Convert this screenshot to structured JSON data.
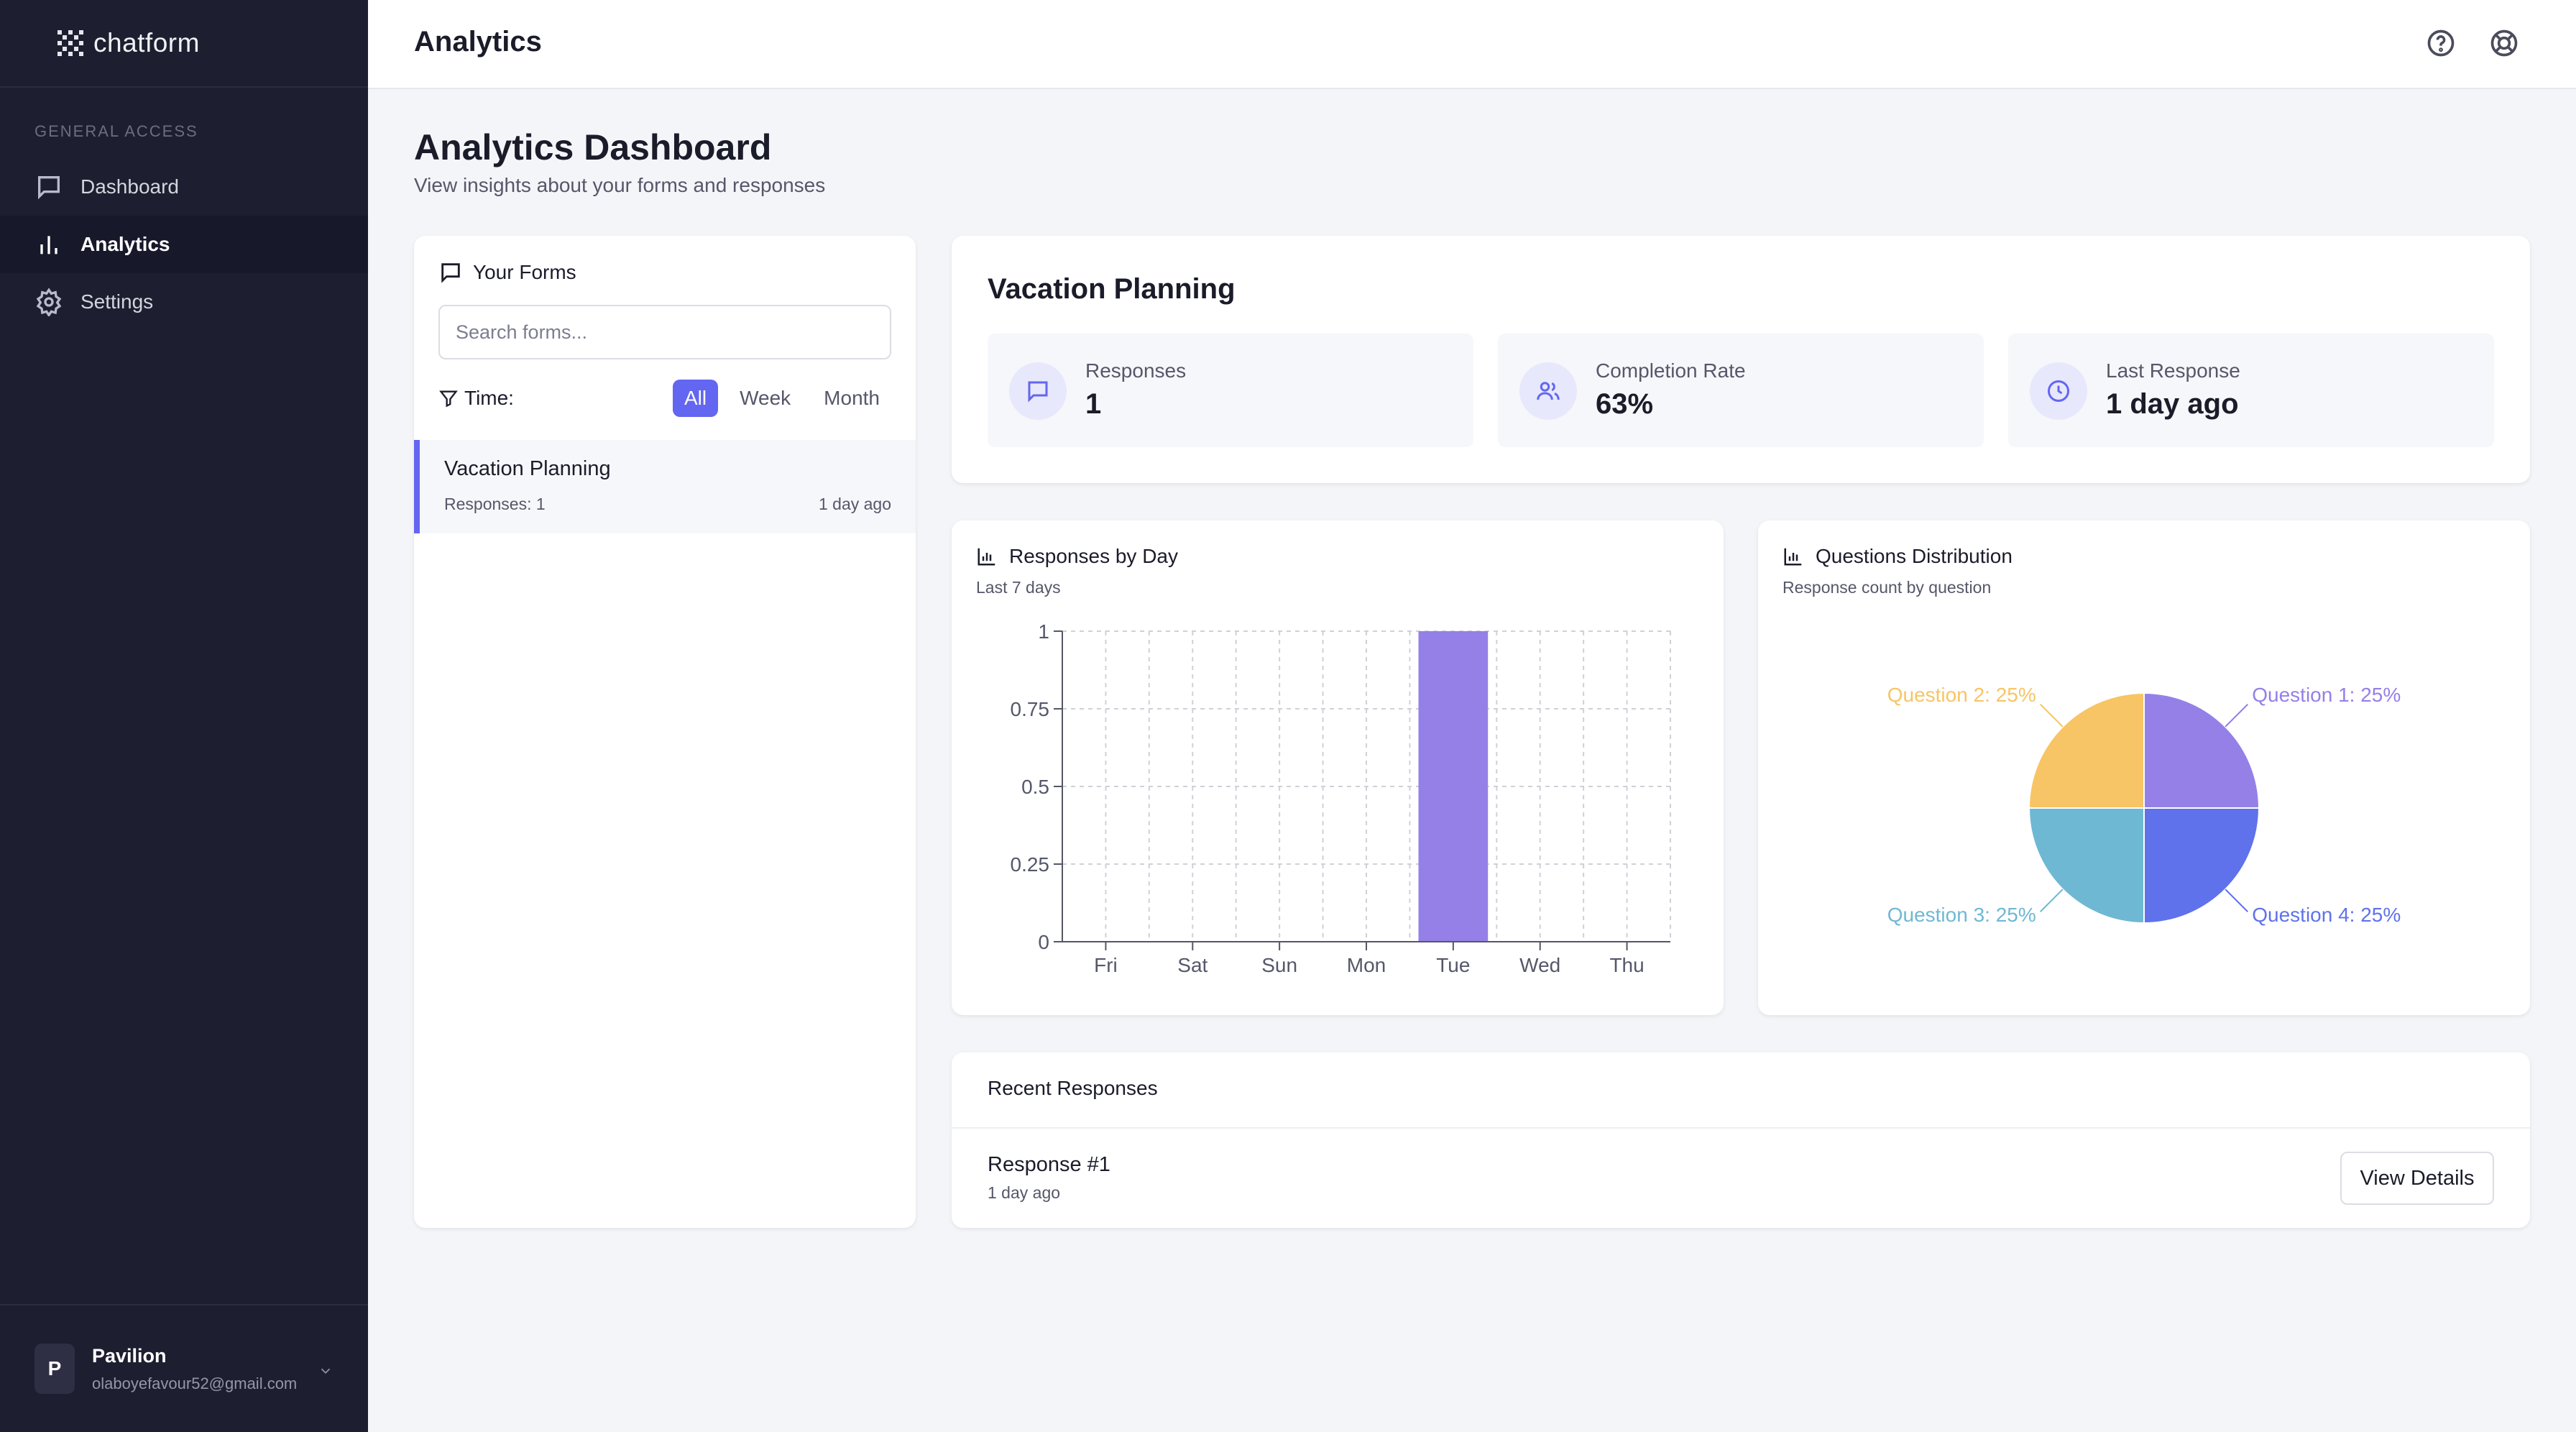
{
  "app": {
    "brand": "chatform"
  },
  "sidebar": {
    "section_label": "GENERAL ACCESS",
    "items": [
      {
        "label": "Dashboard",
        "icon": "message-square-icon",
        "active": false
      },
      {
        "label": "Analytics",
        "icon": "bar-chart-icon",
        "active": true
      },
      {
        "label": "Settings",
        "icon": "gear-icon",
        "active": false
      }
    ],
    "user": {
      "initial": "P",
      "name": "Pavilion",
      "email": "olaboyefavour52@gmail.com"
    }
  },
  "header": {
    "title": "Analytics"
  },
  "page": {
    "title": "Analytics Dashboard",
    "subtitle": "View insights about your forms and responses"
  },
  "forms_panel": {
    "title": "Your Forms",
    "search_placeholder": "Search forms...",
    "time_label": "Time:",
    "filters": [
      "All",
      "Week",
      "Month"
    ],
    "active_filter": "All",
    "items": [
      {
        "name": "Vacation Planning",
        "responses": "Responses: 1",
        "time": "1 day ago"
      }
    ]
  },
  "summary": {
    "title": "Vacation Planning",
    "stats": [
      {
        "label": "Responses",
        "value": "1"
      },
      {
        "label": "Completion Rate",
        "value": "63%"
      },
      {
        "label": "Last Response",
        "value": "1 day ago"
      }
    ]
  },
  "responses_by_day": {
    "title": "Responses by Day",
    "subtitle": "Last 7 days"
  },
  "questions_distribution": {
    "title": "Questions Distribution",
    "subtitle": "Response count by question"
  },
  "recent": {
    "title": "Recent Responses",
    "items": [
      {
        "name": "Response #1",
        "time": "1 day ago",
        "button": "View Details"
      }
    ]
  },
  "colors": {
    "accent": "#6366f1",
    "bar": "#9580e8",
    "pie": [
      "#9580e8",
      "#5f72ec",
      "#6fb8d3",
      "#f7c565"
    ]
  },
  "chart_data": [
    {
      "type": "bar",
      "categories": [
        "Fri",
        "Sat",
        "Sun",
        "Mon",
        "Tue",
        "Wed",
        "Thu"
      ],
      "values": [
        0,
        0,
        0,
        0,
        1,
        0,
        0
      ],
      "ylim": [
        0,
        1
      ],
      "yticks": [
        0,
        0.25,
        0.5,
        0.75,
        1
      ],
      "ytick_labels": [
        "0",
        "0.25",
        "0.5",
        "0.75",
        "1"
      ],
      "grid": true
    },
    {
      "type": "pie",
      "slices": [
        {
          "label": "Question 1: 25%",
          "value": 25
        },
        {
          "label": "Question 4: 25%",
          "value": 25
        },
        {
          "label": "Question 3: 25%",
          "value": 25
        },
        {
          "label": "Question 2: 25%",
          "value": 25
        }
      ]
    }
  ]
}
